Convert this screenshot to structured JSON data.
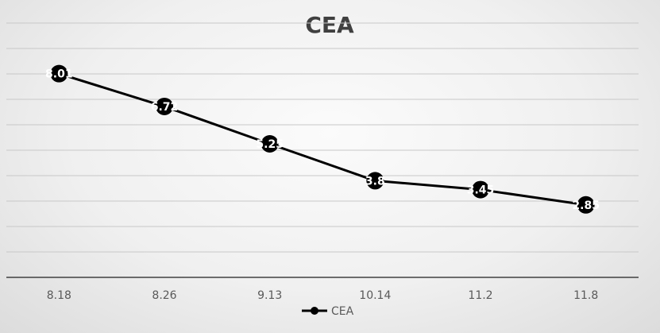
{
  "chart_data": {
    "type": "line",
    "title": "CEA",
    "categories": [
      "8.18",
      "8.26",
      "9.13",
      "10.14",
      "11.2",
      "11.8"
    ],
    "series": [
      {
        "name": "CEA",
        "values": [
          8.01,
          6.72,
          5.25,
          3.8,
          3.45,
          2.85
        ],
        "labels": [
          "8.01",
          "6.72",
          "5.25",
          "3.8",
          "3.45",
          "2.85"
        ]
      }
    ],
    "ylim": [
      0,
      10
    ],
    "xlabel": "",
    "ylabel": "",
    "grid": true,
    "legend": "bottom-center",
    "colors": {
      "line": "#000000",
      "marker": "#000000",
      "grid": "#c8c8c8",
      "axis": "#404040"
    }
  }
}
